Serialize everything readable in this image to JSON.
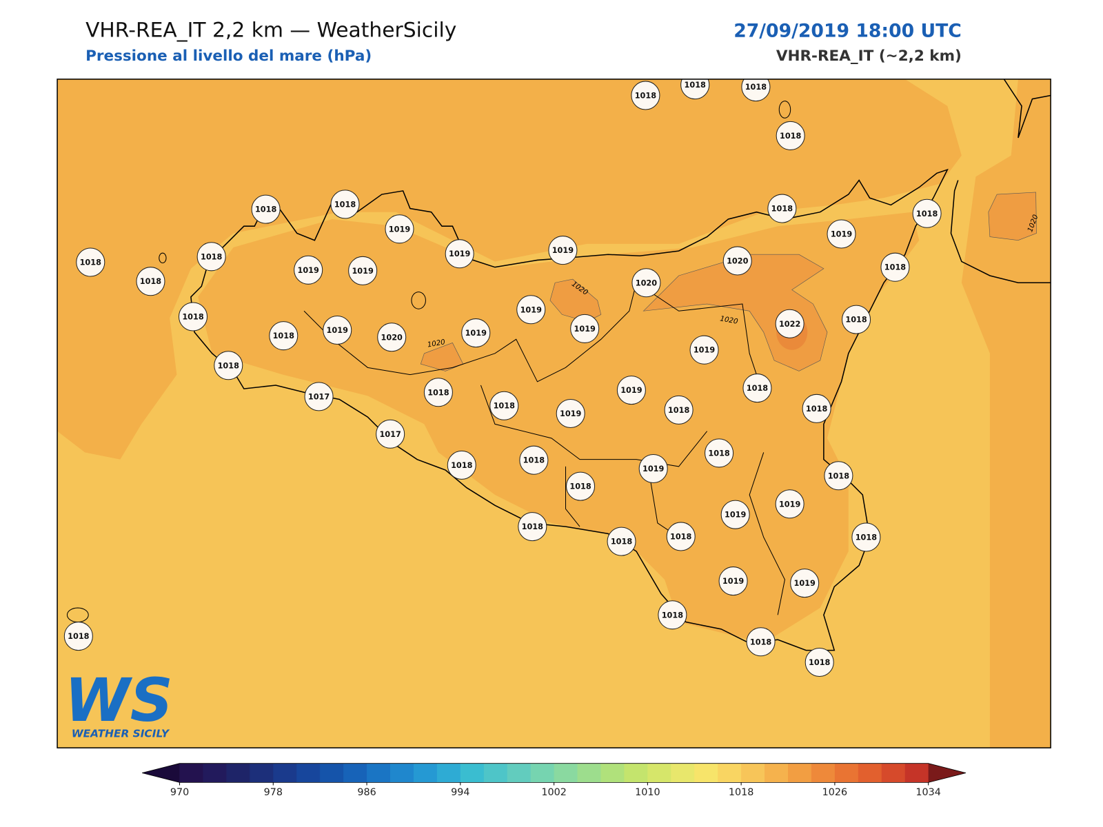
{
  "header": {
    "title": "VHR-REA_IT 2,2 km — WeatherSicily",
    "subtitle": "Pressione al livello del mare (hPa)",
    "datetime": "27/09/2019 18:00 UTC",
    "model": "VHR-REA_IT (~2,2 km)"
  },
  "stations": [
    1018,
    1018,
    1018,
    1018,
    1018,
    1018,
    1019,
    1019,
    1019,
    1018,
    1018,
    1019,
    1018,
    1018,
    1019,
    1019,
    1018,
    1020,
    1020,
    1018,
    1019,
    1019,
    1022,
    1018,
    1018,
    1018,
    1019,
    1020,
    1019,
    1019,
    1018,
    1019,
    1018,
    1018,
    1017,
    1018,
    1018,
    1019,
    1018,
    1017,
    1018,
    1018,
    1018,
    1019,
    1018,
    1018,
    1019,
    1019,
    1018,
    1018,
    1018,
    1018,
    1019,
    1019,
    1018,
    1018,
    1018,
    1018
  ],
  "contour_level": 1020,
  "logo": {
    "mark": "WS",
    "text": "WEATHER SICILY"
  },
  "colorbar": {
    "lim": [
      970,
      1034
    ],
    "ticks": [
      970,
      978,
      986,
      994,
      1002,
      1010,
      1018,
      1026,
      1034
    ],
    "colors": [
      "#23124f",
      "#221a5c",
      "#1e2468",
      "#1c2f7a",
      "#1a3a8c",
      "#17469c",
      "#1554aa",
      "#1763b8",
      "#1a75c4",
      "#1f87cd",
      "#2599d3",
      "#2eabd4",
      "#3abdd0",
      "#4ec5c8",
      "#62ccbe",
      "#76d4b0",
      "#8ad9a0",
      "#9ddd8d",
      "#b0e17b",
      "#c4e46d",
      "#d6e66a",
      "#e8e76c",
      "#f7e46a",
      "#f9d562",
      "#f7c559",
      "#f5b24d",
      "#f29e42",
      "#ee893a",
      "#e97433",
      "#e2602e",
      "#d64a2b",
      "#c53428"
    ],
    "under_color": "#1a0a3a",
    "over_color": "#7a1a1a"
  }
}
